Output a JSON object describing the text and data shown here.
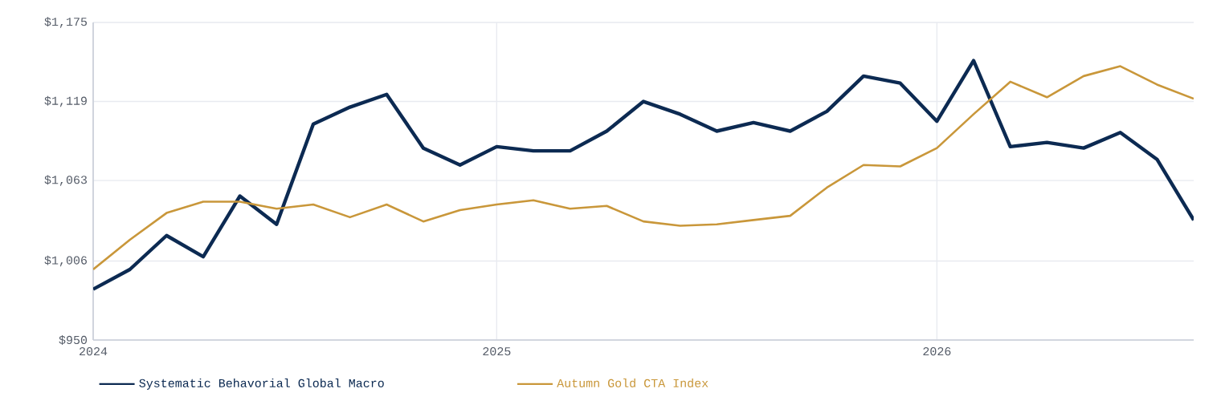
{
  "chart_data": {
    "type": "line",
    "categories": [
      "2024",
      null,
      null,
      null,
      null,
      null,
      null,
      null,
      null,
      null,
      null,
      "2025",
      null,
      null,
      null,
      null,
      null,
      null,
      null,
      null,
      null,
      null,
      null,
      "2026",
      null,
      null,
      null,
      null,
      null,
      null,
      null
    ],
    "series": [
      {
        "name": "Systematic Behavorial Global Macro",
        "color": "#0c2a52",
        "values": [
          986,
          1000,
          1024,
          1009,
          1052,
          1032,
          1103,
          1115,
          1124,
          1086,
          1074,
          1087,
          1084,
          1084,
          1098,
          1119,
          1110,
          1098,
          1104,
          1098,
          1112,
          1137,
          1132,
          1105,
          1148,
          1087,
          1090,
          1086,
          1097,
          1078,
          1035
        ]
      },
      {
        "name": "Autumn Gold CTA Index",
        "color": "#c9973a",
        "values": [
          1000,
          1021,
          1040,
          1048,
          1048,
          1043,
          1046,
          1037,
          1046,
          1034,
          1042,
          1046,
          1049,
          1043,
          1045,
          1034,
          1031,
          1032,
          1035,
          1038,
          1058,
          1074,
          1073,
          1086,
          1110,
          1133,
          1122,
          1137,
          1144,
          1131,
          1121
        ]
      }
    ],
    "ylim": [
      950,
      1175
    ],
    "yticks": [
      {
        "value": 950,
        "label": "$950"
      },
      {
        "value": 1006,
        "label": "$1,006"
      },
      {
        "value": 1063,
        "label": "$1,063"
      },
      {
        "value": 1119,
        "label": "$1,119"
      },
      {
        "value": 1175,
        "label": "$1,175"
      }
    ],
    "grid": true,
    "legend": "bottom"
  }
}
